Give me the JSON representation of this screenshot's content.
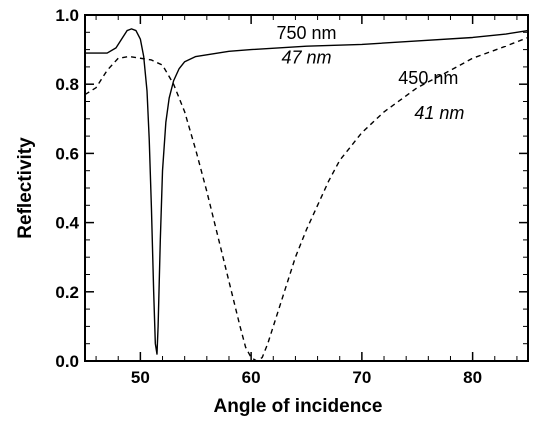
{
  "chart_data": {
    "type": "line",
    "title": "",
    "xlabel": "Angle of incidence",
    "ylabel": "Reflectivity",
    "xlim": [
      45,
      85
    ],
    "ylim": [
      0.0,
      1.0
    ],
    "x_ticks": [
      "50",
      "60",
      "70",
      "80"
    ],
    "y_ticks": [
      "0.0",
      "0.2",
      "0.4",
      "0.6",
      "0.8",
      "1.0"
    ],
    "grid": false,
    "legend": "none",
    "series": [
      {
        "line_style": "solid",
        "color": "#000000",
        "x": [
          45.0,
          46.0,
          47.0,
          47.8,
          48.4,
          48.8,
          49.2,
          49.6,
          50.0,
          50.3,
          50.6,
          50.8,
          51.0,
          51.2,
          51.35,
          51.5,
          51.6,
          51.8,
          52.0,
          52.3,
          52.6,
          53.0,
          53.5,
          54.0,
          55.0,
          56.0,
          58.0,
          60.0,
          65.0,
          70.0,
          75.0,
          80.0,
          83.0,
          85.0
        ],
        "y": [
          0.89,
          0.89,
          0.89,
          0.905,
          0.935,
          0.955,
          0.96,
          0.955,
          0.93,
          0.88,
          0.78,
          0.64,
          0.44,
          0.2,
          0.05,
          0.02,
          0.1,
          0.35,
          0.55,
          0.69,
          0.76,
          0.81,
          0.845,
          0.865,
          0.88,
          0.885,
          0.895,
          0.9,
          0.91,
          0.915,
          0.925,
          0.935,
          0.945,
          0.955
        ]
      },
      {
        "line_style": "dashed",
        "color": "#000000",
        "x": [
          45.0,
          46.0,
          47.0,
          48.0,
          49.0,
          50.0,
          51.0,
          52.0,
          53.0,
          54.0,
          55.0,
          56.0,
          57.0,
          58.0,
          59.0,
          59.5,
          60.0,
          60.5,
          61.0,
          61.5,
          62.0,
          63.0,
          64.0,
          65.0,
          66.0,
          67.0,
          68.0,
          70.0,
          72.0,
          75.0,
          78.0,
          80.0,
          83.0,
          85.0
        ],
        "y": [
          0.77,
          0.79,
          0.84,
          0.875,
          0.88,
          0.875,
          0.87,
          0.855,
          0.8,
          0.72,
          0.61,
          0.49,
          0.36,
          0.23,
          0.1,
          0.04,
          0.01,
          0.0,
          0.01,
          0.05,
          0.1,
          0.2,
          0.3,
          0.38,
          0.45,
          0.52,
          0.58,
          0.66,
          0.72,
          0.79,
          0.84,
          0.875,
          0.91,
          0.935
        ]
      }
    ],
    "annotations": [
      {
        "text": "750 nm",
        "style": "upright",
        "x": 65.0,
        "y": 0.93
      },
      {
        "text": "47 nm",
        "style": "italic",
        "x": 65.0,
        "y": 0.86
      },
      {
        "text": "450 nm",
        "style": "upright",
        "x": 76.0,
        "y": 0.8
      },
      {
        "text": "41 nm",
        "style": "italic",
        "x": 77.0,
        "y": 0.7
      }
    ]
  }
}
